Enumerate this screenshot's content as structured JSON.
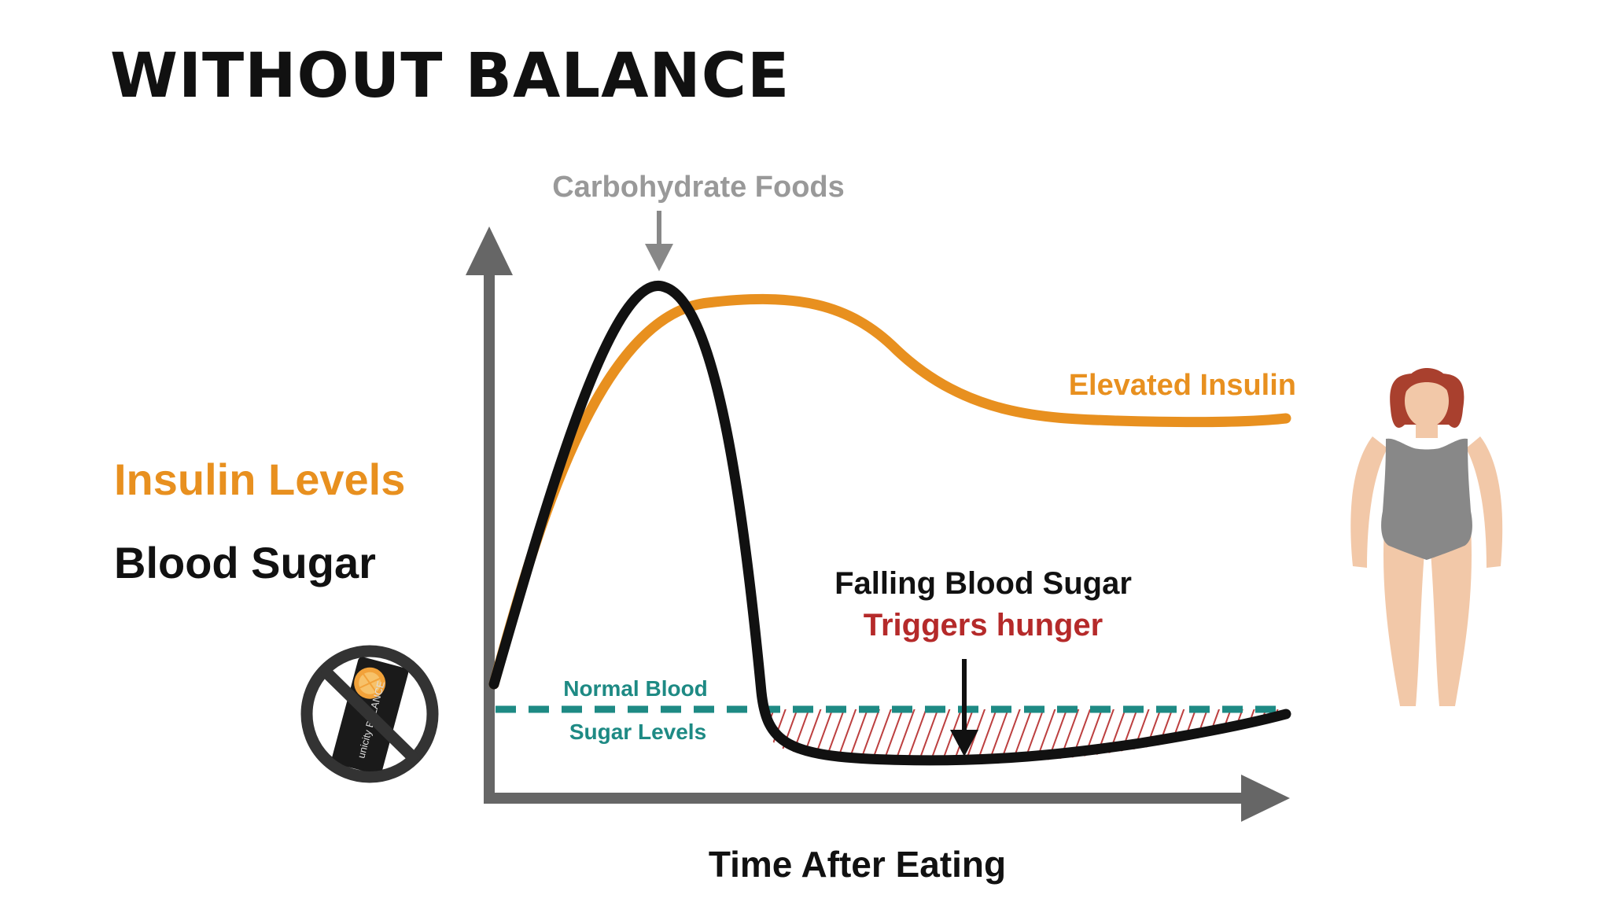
{
  "title": "WITHOUT BALANCE",
  "legend": {
    "insulin_label": "Insulin Levels",
    "blood_sugar_label": "Blood Sugar"
  },
  "annotations": {
    "carbohydrate": "Carbohydrate Foods",
    "elevated_insulin": "Elevated Insulin",
    "falling_line1": "Falling Blood Sugar",
    "falling_line2": "Triggers hunger",
    "normal_line1": "Normal Blood",
    "normal_line2": "Sugar Levels"
  },
  "x_axis_label": "Time After Eating",
  "product_logo_text": "unicity BALANCE",
  "colors": {
    "insulin": "#E8901F",
    "blood_sugar": "#111111",
    "normal_level": "#1E8A84",
    "hunger": "#B52A2A",
    "axis": "#666666",
    "annotation_gray": "#999999"
  },
  "icons": {
    "product": "no-product-icon",
    "figure": "woman-figure-icon"
  }
}
